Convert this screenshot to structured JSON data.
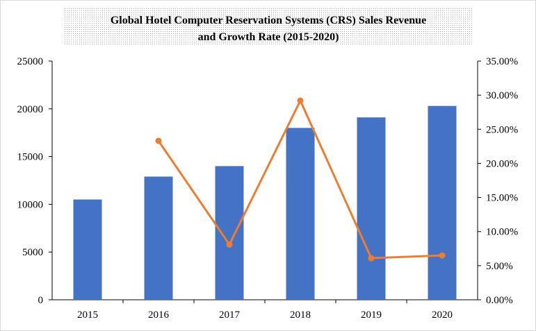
{
  "chart_data": {
    "type": "bar",
    "title_lines": [
      "Global Hotel Computer Reservation Systems (CRS) Sales Revenue",
      "and Growth Rate (2015-2020)"
    ],
    "categories": [
      "2015",
      "2016",
      "2017",
      "2018",
      "2019",
      "2020"
    ],
    "series": [
      {
        "type": "bar",
        "axis": "left",
        "color": "#4472C4",
        "values": [
          10500,
          12900,
          14000,
          18000,
          19100,
          20300
        ]
      },
      {
        "type": "line",
        "axis": "right",
        "color": "#ED7D31",
        "values": [
          null,
          23.3,
          8.1,
          29.2,
          6.1,
          6.5
        ]
      }
    ],
    "ylim_left": [
      0,
      25000
    ],
    "yticks_left": [
      "0",
      "5000",
      "10000",
      "15000",
      "20000",
      "25000"
    ],
    "ylim_right": [
      0,
      35
    ],
    "yticks_right": [
      "0.00%",
      "5.00%",
      "10.00%",
      "15.00%",
      "20.00%",
      "25.00%",
      "30.00%",
      "35.00%"
    ],
    "grid": false,
    "legend": "none"
  }
}
